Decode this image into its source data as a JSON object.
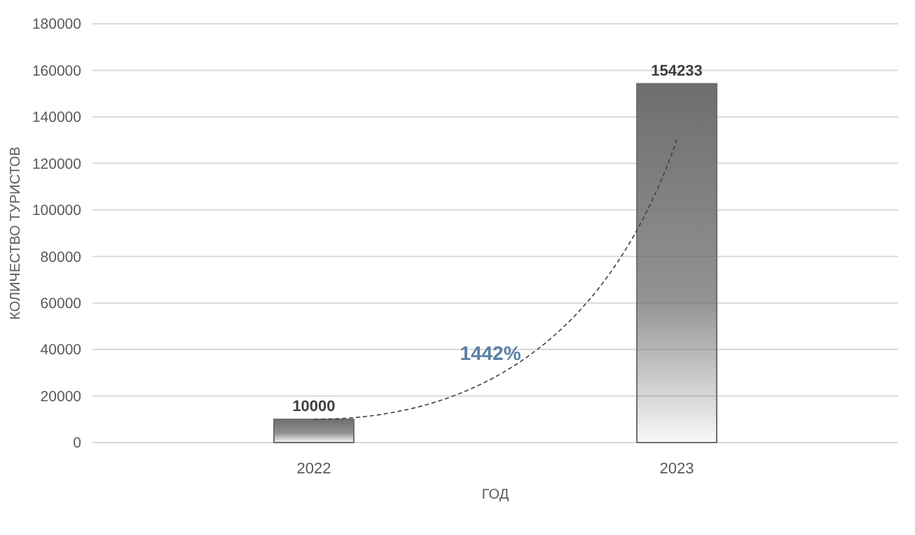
{
  "chart_data": {
    "type": "bar",
    "categories": [
      "2022",
      "2023"
    ],
    "values": [
      10000,
      154233
    ],
    "color": "#6e6e6e",
    "data_labels": true,
    "xlabel": "ГОД",
    "ylabel": "КОЛИЧЕСТВО ТУРИСТОВ",
    "ylim": [
      0,
      180000
    ],
    "yticks": [
      0,
      20000,
      40000,
      60000,
      80000,
      100000,
      120000,
      140000,
      160000,
      180000
    ],
    "grid": "y",
    "annotations": [
      "1442%"
    ]
  }
}
